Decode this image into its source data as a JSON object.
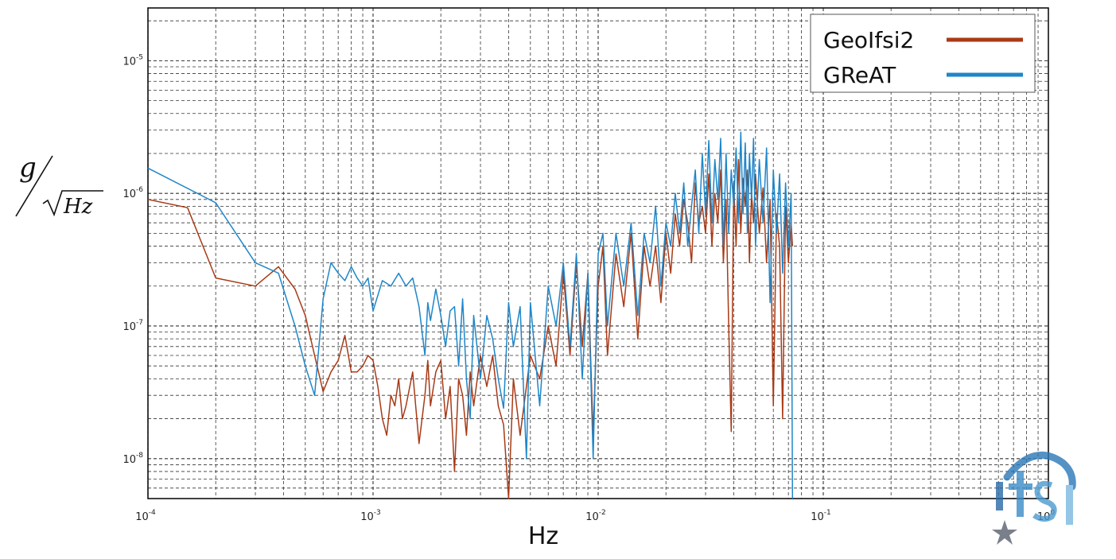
{
  "chart_data": {
    "type": "line",
    "xscale": "log",
    "yscale": "log",
    "xlim": [
      0.0001,
      1
    ],
    "ylim": [
      5e-09,
      2.5e-05
    ],
    "xlabel": "Hz",
    "ylabel": {
      "numerator": "g",
      "denominator": "Hz"
    },
    "grid": true,
    "grid_style": "dashed",
    "legend_position": "top-right",
    "x_ticks": [
      {
        "base": "10",
        "exp": "-4",
        "value": 0.0001
      },
      {
        "base": "10",
        "exp": "-3",
        "value": 0.001
      },
      {
        "base": "10",
        "exp": "-2",
        "value": 0.01
      },
      {
        "base": "10",
        "exp": "-1",
        "value": 0.1
      },
      {
        "base": "10",
        "exp": "0",
        "value": 1
      }
    ],
    "y_ticks": [
      {
        "base": "10",
        "exp": "-5",
        "value": 1e-05
      },
      {
        "base": "10",
        "exp": "-6",
        "value": 1e-06
      },
      {
        "base": "10",
        "exp": "-7",
        "value": 1e-07
      },
      {
        "base": "10",
        "exp": "-8",
        "value": 1e-08
      }
    ],
    "series": [
      {
        "name": "GeoIfsi2",
        "color": "#a83a16",
        "points": [
          [
            0.0001,
            9e-07
          ],
          [
            0.00015,
            7.8e-07
          ],
          [
            0.0002,
            2.3e-07
          ],
          [
            0.0003,
            2e-07
          ],
          [
            0.00038,
            2.8e-07
          ],
          [
            0.00045,
            1.9e-07
          ],
          [
            0.0005,
            1.2e-07
          ],
          [
            0.00055,
            6e-08
          ],
          [
            0.0006,
            3.2e-08
          ],
          [
            0.00065,
            4.5e-08
          ],
          [
            0.0007,
            5.5e-08
          ],
          [
            0.00075,
            8.5e-08
          ],
          [
            0.0008,
            4.5e-08
          ],
          [
            0.00085,
            4.5e-08
          ],
          [
            0.0009,
            5e-08
          ],
          [
            0.00095,
            6e-08
          ],
          [
            0.001,
            5.5e-08
          ],
          [
            0.00105,
            3.5e-08
          ],
          [
            0.0011,
            2e-08
          ],
          [
            0.00115,
            1.5e-08
          ],
          [
            0.0012,
            3e-08
          ],
          [
            0.00125,
            2.5e-08
          ],
          [
            0.0013,
            4e-08
          ],
          [
            0.00135,
            2e-08
          ],
          [
            0.0014,
            2.5e-08
          ],
          [
            0.0015,
            4.5e-08
          ],
          [
            0.0016,
            1.3e-08
          ],
          [
            0.0017,
            3e-08
          ],
          [
            0.00175,
            5.5e-08
          ],
          [
            0.0018,
            2.5e-08
          ],
          [
            0.0019,
            4.5e-08
          ],
          [
            0.002,
            5.5e-08
          ],
          [
            0.0021,
            2e-08
          ],
          [
            0.0022,
            3.5e-08
          ],
          [
            0.0023,
            8e-09
          ],
          [
            0.0024,
            4e-08
          ],
          [
            0.0025,
            3e-08
          ],
          [
            0.0026,
            1.5e-08
          ],
          [
            0.0027,
            4.5e-08
          ],
          [
            0.0028,
            2.5e-08
          ],
          [
            0.003,
            6e-08
          ],
          [
            0.0032,
            3.5e-08
          ],
          [
            0.0034,
            6e-08
          ],
          [
            0.0036,
            2.5e-08
          ],
          [
            0.0038,
            1.8e-08
          ],
          [
            0.004,
            5e-09
          ],
          [
            0.0042,
            4e-08
          ],
          [
            0.0045,
            1.5e-08
          ],
          [
            0.005,
            6e-08
          ],
          [
            0.0055,
            4e-08
          ],
          [
            0.006,
            1e-07
          ],
          [
            0.0065,
            5e-08
          ],
          [
            0.007,
            2.5e-07
          ],
          [
            0.0075,
            6e-08
          ],
          [
            0.008,
            3e-07
          ],
          [
            0.0085,
            7e-08
          ],
          [
            0.009,
            2.5e-07
          ],
          [
            0.0095,
            1.5e-08
          ],
          [
            0.01,
            2e-07
          ],
          [
            0.0105,
            4e-07
          ],
          [
            0.011,
            6e-08
          ],
          [
            0.012,
            3.5e-07
          ],
          [
            0.013,
            1.4e-07
          ],
          [
            0.014,
            5e-07
          ],
          [
            0.015,
            8e-08
          ],
          [
            0.016,
            4e-07
          ],
          [
            0.017,
            2e-07
          ],
          [
            0.018,
            4e-07
          ],
          [
            0.019,
            1.5e-07
          ],
          [
            0.02,
            5e-07
          ],
          [
            0.021,
            2.5e-07
          ],
          [
            0.022,
            7e-07
          ],
          [
            0.023,
            4e-07
          ],
          [
            0.024,
            9e-07
          ],
          [
            0.025,
            6e-07
          ],
          [
            0.026,
            3e-07
          ],
          [
            0.027,
            1.2e-06
          ],
          [
            0.028,
            6e-07
          ],
          [
            0.029,
            8e-07
          ],
          [
            0.03,
            5e-07
          ],
          [
            0.031,
            1.4e-06
          ],
          [
            0.032,
            4e-07
          ],
          [
            0.033,
            1e-06
          ],
          [
            0.034,
            6e-07
          ],
          [
            0.035,
            1.5e-06
          ],
          [
            0.036,
            3e-07
          ],
          [
            0.037,
            9e-07
          ],
          [
            0.038,
            1e-07
          ],
          [
            0.039,
            1.6e-08
          ],
          [
            0.04,
            1.2e-06
          ],
          [
            0.041,
            4e-07
          ],
          [
            0.042,
            1.8e-06
          ],
          [
            0.043,
            5e-07
          ],
          [
            0.044,
            1.3e-06
          ],
          [
            0.045,
            8e-07
          ],
          [
            0.046,
            1.5e-06
          ],
          [
            0.047,
            3e-07
          ],
          [
            0.048,
            1e-06
          ],
          [
            0.049,
            6e-07
          ],
          [
            0.05,
            1.4e-06
          ],
          [
            0.052,
            5e-07
          ],
          [
            0.054,
            1.1e-06
          ],
          [
            0.056,
            3e-07
          ],
          [
            0.058,
            9e-07
          ],
          [
            0.06,
            2.5e-08
          ],
          [
            0.062,
            7e-07
          ],
          [
            0.064,
            4e-07
          ],
          [
            0.066,
            2e-08
          ],
          [
            0.068,
            8e-07
          ],
          [
            0.07,
            3e-07
          ],
          [
            0.072,
            6e-07
          ],
          [
            0.073,
            4e-07
          ]
        ]
      },
      {
        "name": "GReAT",
        "color": "#1f86c8",
        "points": [
          [
            0.0001,
            1.55e-06
          ],
          [
            0.0002,
            8.5e-07
          ],
          [
            0.0003,
            3e-07
          ],
          [
            0.00038,
            2.5e-07
          ],
          [
            0.00045,
            1e-07
          ],
          [
            0.0005,
            5e-08
          ],
          [
            0.00055,
            3e-08
          ],
          [
            0.0006,
            1.6e-07
          ],
          [
            0.00065,
            3e-07
          ],
          [
            0.0007,
            2.5e-07
          ],
          [
            0.00075,
            2.2e-07
          ],
          [
            0.0008,
            2.8e-07
          ],
          [
            0.00085,
            2.3e-07
          ],
          [
            0.0009,
            2e-07
          ],
          [
            0.00095,
            2.3e-07
          ],
          [
            0.001,
            1.3e-07
          ],
          [
            0.0011,
            2.2e-07
          ],
          [
            0.0012,
            2e-07
          ],
          [
            0.0013,
            2.5e-07
          ],
          [
            0.0014,
            2e-07
          ],
          [
            0.0015,
            2.3e-07
          ],
          [
            0.0016,
            1.4e-07
          ],
          [
            0.0017,
            6e-08
          ],
          [
            0.00175,
            1.5e-07
          ],
          [
            0.0018,
            1.1e-07
          ],
          [
            0.0019,
            1.9e-07
          ],
          [
            0.002,
            1.2e-07
          ],
          [
            0.0021,
            7e-08
          ],
          [
            0.0022,
            1.3e-07
          ],
          [
            0.0023,
            1.4e-07
          ],
          [
            0.0024,
            5e-08
          ],
          [
            0.0025,
            1.6e-07
          ],
          [
            0.0026,
            4e-08
          ],
          [
            0.0027,
            2e-08
          ],
          [
            0.0028,
            1.2e-07
          ],
          [
            0.003,
            4e-08
          ],
          [
            0.0032,
            1.2e-07
          ],
          [
            0.0034,
            8e-08
          ],
          [
            0.0036,
            4e-08
          ],
          [
            0.0038,
            2.4e-08
          ],
          [
            0.004,
            1.5e-07
          ],
          [
            0.0042,
            7e-08
          ],
          [
            0.0045,
            1.4e-07
          ],
          [
            0.0048,
            1e-08
          ],
          [
            0.005,
            1.5e-07
          ],
          [
            0.0055,
            2.5e-08
          ],
          [
            0.006,
            2e-07
          ],
          [
            0.0065,
            1e-07
          ],
          [
            0.007,
            3e-07
          ],
          [
            0.0075,
            7e-08
          ],
          [
            0.008,
            3.5e-07
          ],
          [
            0.0085,
            4e-08
          ],
          [
            0.009,
            2.5e-07
          ],
          [
            0.0095,
            1e-08
          ],
          [
            0.01,
            3.5e-07
          ],
          [
            0.0105,
            5e-07
          ],
          [
            0.011,
            1e-07
          ],
          [
            0.012,
            5e-07
          ],
          [
            0.013,
            2e-07
          ],
          [
            0.014,
            6e-07
          ],
          [
            0.015,
            1.2e-07
          ],
          [
            0.016,
            5e-07
          ],
          [
            0.017,
            3e-07
          ],
          [
            0.018,
            8e-07
          ],
          [
            0.019,
            2e-07
          ],
          [
            0.02,
            6e-07
          ],
          [
            0.021,
            4e-07
          ],
          [
            0.022,
            1e-06
          ],
          [
            0.023,
            5e-07
          ],
          [
            0.024,
            1.2e-06
          ],
          [
            0.025,
            4e-07
          ],
          [
            0.026,
            8e-07
          ],
          [
            0.027,
            1.5e-06
          ],
          [
            0.028,
            5e-07
          ],
          [
            0.029,
            2e-06
          ],
          [
            0.03,
            7e-07
          ],
          [
            0.031,
            2.5e-06
          ],
          [
            0.032,
            6e-07
          ],
          [
            0.033,
            1.8e-06
          ],
          [
            0.034,
            9e-07
          ],
          [
            0.035,
            2.6e-06
          ],
          [
            0.036,
            4e-07
          ],
          [
            0.037,
            2e-06
          ],
          [
            0.038,
            5e-07
          ],
          [
            0.039,
            1.5e-06
          ],
          [
            0.04,
            8e-07
          ],
          [
            0.041,
            2.2e-06
          ],
          [
            0.042,
            6e-07
          ],
          [
            0.043,
            2.9e-06
          ],
          [
            0.044,
            7e-07
          ],
          [
            0.045,
            2.4e-06
          ],
          [
            0.046,
            5e-07
          ],
          [
            0.047,
            2e-06
          ],
          [
            0.048,
            9e-07
          ],
          [
            0.049,
            2.6e-06
          ],
          [
            0.05,
            4e-07
          ],
          [
            0.052,
            1.8e-06
          ],
          [
            0.054,
            6e-07
          ],
          [
            0.056,
            2.2e-06
          ],
          [
            0.058,
            1.5e-07
          ],
          [
            0.06,
            1.5e-06
          ],
          [
            0.062,
            5e-07
          ],
          [
            0.064,
            1.4e-06
          ],
          [
            0.066,
            2.5e-07
          ],
          [
            0.068,
            1.2e-06
          ],
          [
            0.07,
            4e-07
          ],
          [
            0.072,
            1e-06
          ],
          [
            0.073,
            5e-09
          ]
        ]
      }
    ]
  }
}
